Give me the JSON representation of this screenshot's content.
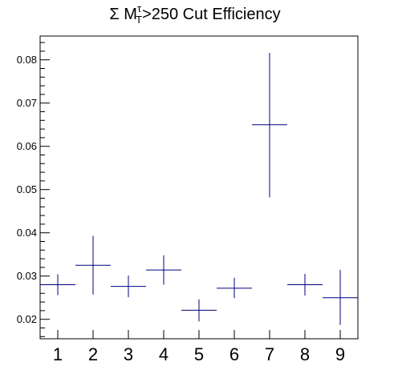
{
  "chart_data": {
    "type": "scatter",
    "title": {
      "prefix": "Σ M",
      "superscript": "τ",
      "subscript": "T",
      "suffix": ">250 Cut Efficiency"
    },
    "xlabel": "",
    "ylabel": "",
    "xlim": [
      0.5,
      9.5
    ],
    "ylim": [
      0.0155,
      0.0855
    ],
    "x_tick_labels": [
      "1",
      "2",
      "3",
      "4",
      "5",
      "6",
      "7",
      "8",
      "9"
    ],
    "y_ticks": [
      0.02,
      0.03,
      0.04,
      0.05,
      0.06,
      0.07,
      0.08
    ],
    "y_tick_labels": [
      "0.02",
      "0.03",
      "0.04",
      "0.05",
      "0.06",
      "0.07",
      "0.08"
    ],
    "grid": false,
    "series": [
      {
        "color": "#00007f",
        "points": [
          {
            "x": 1,
            "y": 0.028,
            "ylow": 0.0256,
            "yhigh": 0.0304
          },
          {
            "x": 2,
            "y": 0.0325,
            "ylow": 0.0257,
            "yhigh": 0.0393
          },
          {
            "x": 3,
            "y": 0.0276,
            "ylow": 0.0251,
            "yhigh": 0.0301
          },
          {
            "x": 4,
            "y": 0.0314,
            "ylow": 0.028,
            "yhigh": 0.0348
          },
          {
            "x": 5,
            "y": 0.0221,
            "ylow": 0.0195,
            "yhigh": 0.0246
          },
          {
            "x": 6,
            "y": 0.0272,
            "ylow": 0.0249,
            "yhigh": 0.0296
          },
          {
            "x": 7,
            "y": 0.065,
            "ylow": 0.0482,
            "yhigh": 0.0816
          },
          {
            "x": 8,
            "y": 0.028,
            "ylow": 0.0255,
            "yhigh": 0.0305
          },
          {
            "x": 9,
            "y": 0.025,
            "ylow": 0.0187,
            "yhigh": 0.0314
          }
        ]
      }
    ]
  }
}
